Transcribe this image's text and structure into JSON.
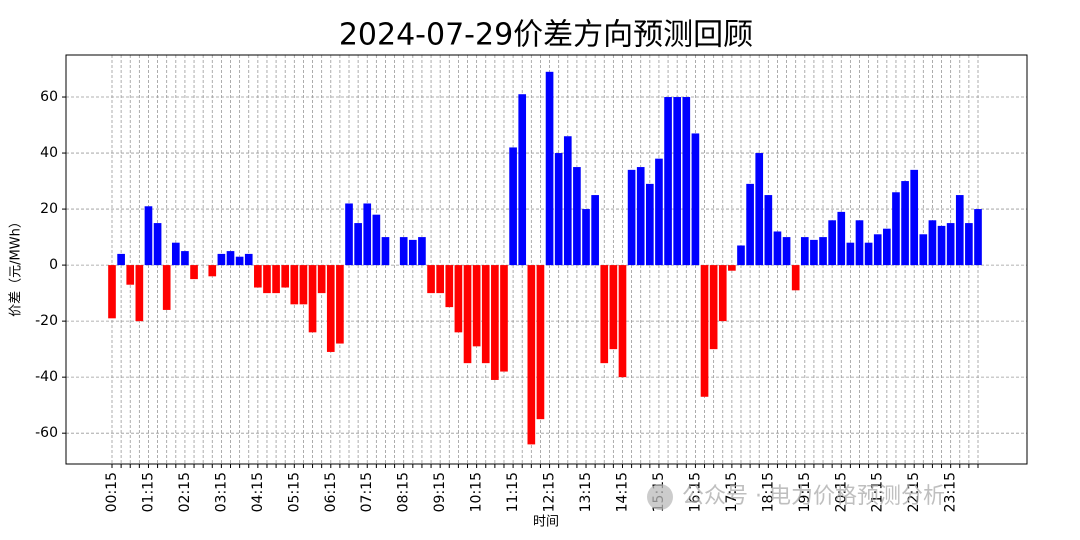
{
  "chart_data": {
    "type": "bar",
    "title": "2024-07-29价差方向预测回顾",
    "ylabel": "价差（元/MWh）",
    "xlabel": "时间",
    "watermark": "公众号 · 电力价格预测分析",
    "categories": [
      "00:15",
      null,
      null,
      null,
      "01:15",
      null,
      null,
      null,
      "02:15",
      null,
      null,
      null,
      "03:15",
      null,
      null,
      null,
      "04:15",
      null,
      null,
      null,
      "05:15",
      null,
      null,
      null,
      "06:15",
      null,
      null,
      null,
      "07:15",
      null,
      null,
      null,
      "08:15",
      null,
      null,
      null,
      "09:15",
      null,
      null,
      null,
      "10:15",
      null,
      null,
      null,
      "11:15",
      null,
      null,
      null,
      "12:15",
      null,
      null,
      null,
      "13:15",
      null,
      null,
      null,
      "14:15",
      null,
      null,
      null,
      "15:15",
      null,
      null,
      null,
      "16:15",
      null,
      null,
      null,
      "17:15",
      null,
      null,
      null,
      "18:15",
      null,
      null,
      null,
      "19:15",
      null,
      null,
      null,
      "20:15",
      null,
      null,
      null,
      "21:15",
      null,
      null,
      null,
      "22:15",
      null,
      null,
      null,
      "23:15",
      null,
      null,
      null
    ],
    "values": [
      -19,
      4,
      -7,
      -20,
      21,
      15,
      -16,
      8,
      5,
      -5,
      0,
      -4,
      4,
      5,
      3,
      4,
      -8,
      -10,
      -10,
      -8,
      -14,
      -14,
      -24,
      -10,
      -31,
      -28,
      22,
      15,
      22,
      18,
      10,
      0,
      10,
      9,
      10,
      -10,
      -10,
      -15,
      -24,
      -35,
      -29,
      -35,
      -41,
      -38,
      42,
      61,
      -64,
      -55,
      69,
      40,
      46,
      35,
      20,
      25,
      -35,
      -30,
      -40,
      34,
      35,
      29,
      38,
      60,
      60,
      60,
      47,
      -47,
      -30,
      -20,
      -2,
      7,
      29,
      40,
      25,
      12,
      10,
      -9,
      10,
      9,
      10,
      16,
      19,
      8,
      16,
      8,
      11,
      13,
      26,
      30,
      34,
      11,
      16,
      14,
      15,
      25,
      15,
      20
    ],
    "positive_color": "#0000ff",
    "negative_color": "#ff0000",
    "ylim": [
      -71,
      75
    ],
    "yticks": [
      -60,
      -40,
      -20,
      0,
      20,
      40,
      60
    ],
    "grid": true
  }
}
